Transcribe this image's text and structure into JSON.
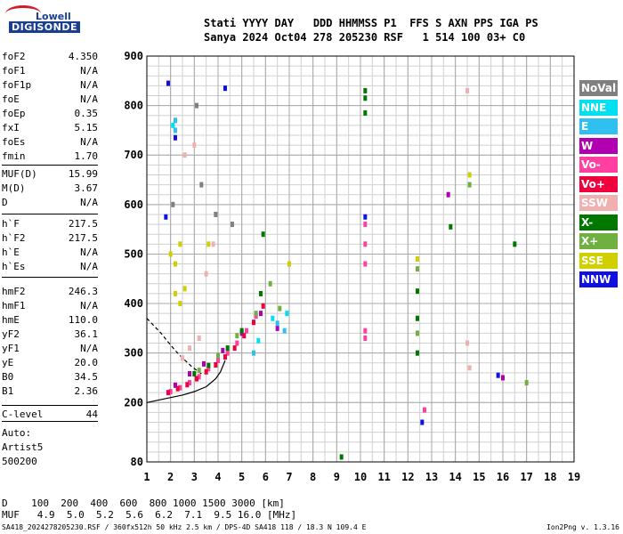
{
  "logo": {
    "brand_top": "Lowell",
    "brand_bottom": "DIGISONDE"
  },
  "header": {
    "line1": "Stati YYYY DAY   DDD HHMMSS P1  FFS S AXN PPS IGA PS",
    "line2": "Sanya 2024 Oct04 278 205230 RSF   1 514 100 03+ C0"
  },
  "params": [
    {
      "name": "foF2",
      "value": "4.350"
    },
    {
      "name": "foF1",
      "value": "N/A"
    },
    {
      "name": "foF1p",
      "value": "N/A"
    },
    {
      "name": "foE",
      "value": "N/A"
    },
    {
      "name": "foEp",
      "value": "0.35"
    },
    {
      "name": "fxI",
      "value": "5.15"
    },
    {
      "name": "foEs",
      "value": "N/A"
    },
    {
      "name": "fmin",
      "value": "1.70"
    },
    {
      "name": "MUF(D)",
      "value": "15.99"
    },
    {
      "name": "M(D)",
      "value": "3.67"
    },
    {
      "name": "D",
      "value": "N/A"
    },
    {
      "name": "h`F",
      "value": "217.5"
    },
    {
      "name": "h`F2",
      "value": "217.5"
    },
    {
      "name": "h`E",
      "value": "N/A"
    },
    {
      "name": "h`Es",
      "value": "N/A"
    },
    {
      "name": "hmF2",
      "value": "246.3"
    },
    {
      "name": "hmF1",
      "value": "N/A"
    },
    {
      "name": "hmE",
      "value": "110.0"
    },
    {
      "name": "yF2",
      "value": "36.1"
    },
    {
      "name": "yF1",
      "value": "N/A"
    },
    {
      "name": "yE",
      "value": "20.0"
    },
    {
      "name": "B0",
      "value": "34.5"
    },
    {
      "name": "B1",
      "value": "2.36"
    },
    {
      "name": "C-level",
      "value": "44"
    }
  ],
  "auto": {
    "label": "Auto:",
    "artist": "Artist5",
    "version": "500200"
  },
  "legend": [
    {
      "name": "NoVal",
      "color": "#808080"
    },
    {
      "name": "NNE",
      "color": "#00e0f0"
    },
    {
      "name": "E",
      "color": "#30c0f0"
    },
    {
      "name": "W",
      "color": "#b000b0"
    },
    {
      "name": "Vo-",
      "color": "#ff40a0"
    },
    {
      "name": "Vo+",
      "color": "#f0003c"
    },
    {
      "name": "SSW",
      "color": "#f0b0b0"
    },
    {
      "name": "X-",
      "color": "#007800"
    },
    {
      "name": "X+",
      "color": "#70b040"
    },
    {
      "name": "SSE",
      "color": "#d0d000"
    },
    {
      "name": "NNW",
      "color": "#1010e0"
    }
  ],
  "distance_table": {
    "line1": "D    100  200  400  600  800 1000 1500 3000 [km]",
    "line2": "MUF   4.9  5.0  5.2  5.6  6.2  7.1  9.5 16.0 [MHz]"
  },
  "footer": {
    "left": "SA418_2024278205230.RSF / 360fx512h 50 kHz 2.5 km / DPS-4D SA418 118 / 18.3 N 109.4 E",
    "right": "Ion2Png v. 1.3.16"
  },
  "chart_data": {
    "type": "scatter",
    "xlim": [
      1,
      19
    ],
    "ylim": [
      80,
      900
    ],
    "x_ticks": [
      1,
      2,
      3,
      4,
      5,
      6,
      7,
      8,
      9,
      10,
      11,
      12,
      13,
      14,
      15,
      16,
      17,
      18,
      19
    ],
    "y_ticks": [
      80,
      200,
      300,
      400,
      500,
      600,
      700,
      800,
      900
    ],
    "grid": true,
    "legend_position": "right",
    "series": [
      {
        "name": "Vo-",
        "points": [
          [
            2.0,
            222
          ],
          [
            2.4,
            230
          ],
          [
            2.8,
            240
          ],
          [
            3.2,
            252
          ],
          [
            3.6,
            268
          ],
          [
            4.0,
            285
          ],
          [
            4.4,
            300
          ],
          [
            4.8,
            320
          ],
          [
            5.2,
            345
          ],
          [
            5.6,
            375
          ],
          [
            10.2,
            480
          ],
          [
            10.2,
            520
          ],
          [
            10.2,
            560
          ],
          [
            10.2,
            345
          ],
          [
            10.2,
            330
          ],
          [
            12.7,
            185
          ]
        ]
      },
      {
        "name": "Vo+",
        "points": [
          [
            1.9,
            220
          ],
          [
            2.3,
            228
          ],
          [
            2.7,
            236
          ],
          [
            3.1,
            248
          ],
          [
            3.5,
            262
          ],
          [
            3.9,
            276
          ],
          [
            4.3,
            292
          ],
          [
            4.7,
            310
          ],
          [
            5.1,
            335
          ],
          [
            5.5,
            362
          ],
          [
            5.9,
            395
          ]
        ]
      },
      {
        "name": "W",
        "points": [
          [
            2.2,
            235
          ],
          [
            2.8,
            258
          ],
          [
            3.4,
            278
          ],
          [
            4.2,
            305
          ],
          [
            5.0,
            340
          ],
          [
            5.8,
            380
          ],
          [
            6.5,
            350
          ],
          [
            13.7,
            620
          ],
          [
            16.0,
            250
          ]
        ]
      },
      {
        "name": "X-",
        "points": [
          [
            3.0,
            258
          ],
          [
            3.6,
            275
          ],
          [
            4.4,
            310
          ],
          [
            5.0,
            345
          ],
          [
            5.8,
            420
          ],
          [
            5.9,
            540
          ],
          [
            10.2,
            830
          ],
          [
            10.2,
            815
          ],
          [
            10.2,
            785
          ],
          [
            12.4,
            425
          ],
          [
            12.4,
            370
          ],
          [
            12.4,
            300
          ],
          [
            13.8,
            555
          ],
          [
            16.5,
            520
          ],
          [
            9.2,
            90
          ]
        ]
      },
      {
        "name": "X+",
        "points": [
          [
            3.2,
            265
          ],
          [
            4.0,
            295
          ],
          [
            4.8,
            335
          ],
          [
            5.6,
            380
          ],
          [
            6.2,
            440
          ],
          [
            6.6,
            390
          ],
          [
            12.4,
            470
          ],
          [
            12.4,
            340
          ],
          [
            14.6,
            640
          ],
          [
            17.0,
            240
          ]
        ]
      },
      {
        "name": "E",
        "points": [
          [
            2.2,
            770
          ],
          [
            2.2,
            750
          ],
          [
            6.5,
            360
          ],
          [
            6.8,
            345
          ],
          [
            5.5,
            300
          ]
        ]
      },
      {
        "name": "NNE",
        "points": [
          [
            2.1,
            760
          ],
          [
            6.3,
            370
          ],
          [
            6.9,
            380
          ],
          [
            5.7,
            325
          ]
        ]
      },
      {
        "name": "SSW",
        "points": [
          [
            2.5,
            290
          ],
          [
            2.8,
            310
          ],
          [
            3.2,
            330
          ],
          [
            3.0,
            720
          ],
          [
            2.6,
            700
          ],
          [
            3.5,
            460
          ],
          [
            3.8,
            520
          ],
          [
            14.6,
            270
          ],
          [
            14.5,
            320
          ],
          [
            14.5,
            830
          ]
        ]
      },
      {
        "name": "SSE",
        "points": [
          [
            2.0,
            500
          ],
          [
            2.2,
            480
          ],
          [
            2.4,
            520
          ],
          [
            2.2,
            420
          ],
          [
            2.4,
            400
          ],
          [
            2.6,
            430
          ],
          [
            3.6,
            520
          ],
          [
            7.0,
            480
          ],
          [
            12.4,
            490
          ],
          [
            14.6,
            660
          ]
        ]
      },
      {
        "name": "NNW",
        "points": [
          [
            1.9,
            845
          ],
          [
            1.8,
            575
          ],
          [
            2.2,
            735
          ],
          [
            4.3,
            835
          ],
          [
            12.6,
            160
          ],
          [
            15.8,
            255
          ],
          [
            10.2,
            575
          ]
        ]
      },
      {
        "name": "NoVal",
        "points": [
          [
            2.1,
            600
          ],
          [
            3.3,
            640
          ],
          [
            3.9,
            580
          ],
          [
            4.6,
            560
          ],
          [
            3.1,
            800
          ]
        ]
      }
    ],
    "annotations": [
      {
        "type": "solid-curve",
        "points": [
          [
            1.0,
            200
          ],
          [
            1.8,
            208
          ],
          [
            2.5,
            215
          ],
          [
            3.0,
            222
          ],
          [
            3.5,
            232
          ],
          [
            3.9,
            248
          ],
          [
            4.1,
            262
          ],
          [
            4.3,
            285
          ]
        ]
      },
      {
        "type": "dashed-curve",
        "points": [
          [
            1.0,
            370
          ],
          [
            1.3,
            355
          ],
          [
            1.6,
            340
          ],
          [
            1.9,
            322
          ],
          [
            2.2,
            305
          ],
          [
            2.5,
            290
          ],
          [
            2.9,
            272
          ],
          [
            3.3,
            258
          ]
        ]
      }
    ]
  }
}
